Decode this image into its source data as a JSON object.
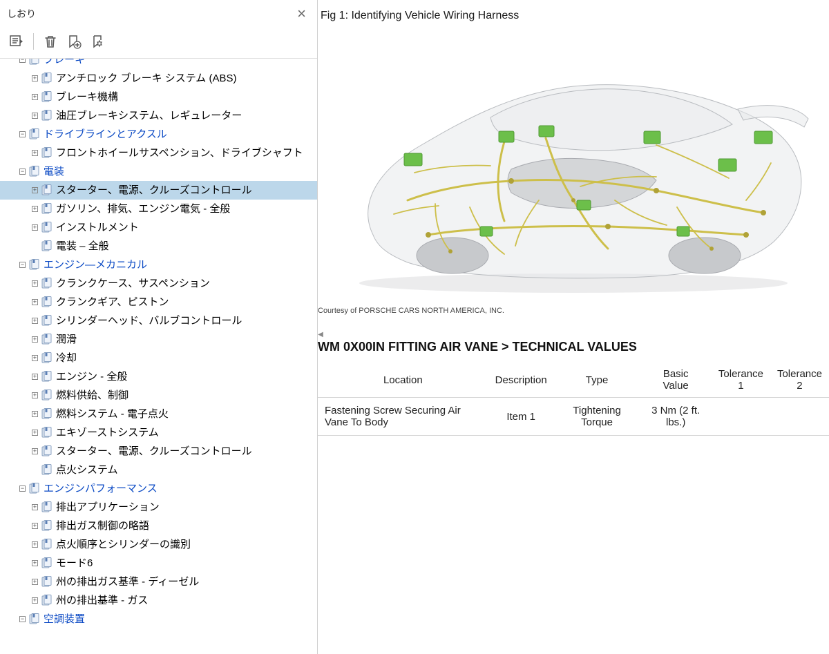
{
  "sidebar": {
    "title": "しおり",
    "tree": [
      {
        "depth": 1,
        "expander": "-",
        "section": true,
        "selected": false,
        "label": "ブレーキ",
        "partial_top": true
      },
      {
        "depth": 2,
        "expander": "+",
        "section": false,
        "selected": false,
        "label": "アンチロック ブレーキ システム (ABS)"
      },
      {
        "depth": 2,
        "expander": "+",
        "section": false,
        "selected": false,
        "label": "ブレーキ機構"
      },
      {
        "depth": 2,
        "expander": "+",
        "section": false,
        "selected": false,
        "label": "油圧ブレーキシステム、レギュレーター"
      },
      {
        "depth": 1,
        "expander": "-",
        "section": true,
        "selected": false,
        "label": "ドライブラインとアクスル"
      },
      {
        "depth": 2,
        "expander": "+",
        "section": false,
        "selected": false,
        "label": "フロントホイールサスペンション、ドライブシャフト"
      },
      {
        "depth": 1,
        "expander": "-",
        "section": true,
        "selected": false,
        "label": "電装"
      },
      {
        "depth": 2,
        "expander": "+",
        "section": false,
        "selected": true,
        "label": "スターター、電源、クルーズコントロール"
      },
      {
        "depth": 2,
        "expander": "+",
        "section": false,
        "selected": false,
        "label": "ガソリン、排気、エンジン電気 - 全般"
      },
      {
        "depth": 2,
        "expander": "+",
        "section": false,
        "selected": false,
        "label": "インストルメント"
      },
      {
        "depth": 2,
        "expander": "",
        "section": false,
        "selected": false,
        "label": "電装 – 全般"
      },
      {
        "depth": 1,
        "expander": "-",
        "section": true,
        "selected": false,
        "label": "エンジン—メカニカル"
      },
      {
        "depth": 2,
        "expander": "+",
        "section": false,
        "selected": false,
        "label": "クランクケース、サスペンション"
      },
      {
        "depth": 2,
        "expander": "+",
        "section": false,
        "selected": false,
        "label": "クランクギア、ピストン"
      },
      {
        "depth": 2,
        "expander": "+",
        "section": false,
        "selected": false,
        "label": "シリンダーヘッド、バルブコントロール"
      },
      {
        "depth": 2,
        "expander": "+",
        "section": false,
        "selected": false,
        "label": "潤滑"
      },
      {
        "depth": 2,
        "expander": "+",
        "section": false,
        "selected": false,
        "label": "冷却"
      },
      {
        "depth": 2,
        "expander": "+",
        "section": false,
        "selected": false,
        "label": "エンジン - 全般"
      },
      {
        "depth": 2,
        "expander": "+",
        "section": false,
        "selected": false,
        "label": "燃料供給、制御"
      },
      {
        "depth": 2,
        "expander": "+",
        "section": false,
        "selected": false,
        "label": "燃料システム - 電子点火"
      },
      {
        "depth": 2,
        "expander": "+",
        "section": false,
        "selected": false,
        "label": "エキゾーストシステム"
      },
      {
        "depth": 2,
        "expander": "+",
        "section": false,
        "selected": false,
        "label": "スターター、電源、クルーズコントロール"
      },
      {
        "depth": 2,
        "expander": "",
        "section": false,
        "selected": false,
        "label": "点火システム"
      },
      {
        "depth": 1,
        "expander": "-",
        "section": true,
        "selected": false,
        "label": "エンジンパフォーマンス"
      },
      {
        "depth": 2,
        "expander": "+",
        "section": false,
        "selected": false,
        "label": "排出アプリケーション"
      },
      {
        "depth": 2,
        "expander": "+",
        "section": false,
        "selected": false,
        "label": "排出ガス制御の略語"
      },
      {
        "depth": 2,
        "expander": "+",
        "section": false,
        "selected": false,
        "label": "点火順序とシリンダーの識別"
      },
      {
        "depth": 2,
        "expander": "+",
        "section": false,
        "selected": false,
        "label": "モード6"
      },
      {
        "depth": 2,
        "expander": "+",
        "section": false,
        "selected": false,
        "label": "州の排出ガス基準 - ディーゼル"
      },
      {
        "depth": 2,
        "expander": "+",
        "section": false,
        "selected": false,
        "label": "州の排出基準 - ガス"
      },
      {
        "depth": 1,
        "expander": "-",
        "section": true,
        "selected": false,
        "label": "空調装置"
      }
    ]
  },
  "content": {
    "figure_title": "Fig 1: Identifying Vehicle Wiring Harness",
    "courtesy": "Courtesy of PORSCHE CARS NORTH AMERICA, INC.",
    "section_title": "WM 0X00IN FITTING AIR VANE > TECHNICAL VALUES",
    "table": {
      "columns": [
        "Location",
        "Description",
        "Type",
        "Basic Value",
        "Tolerance 1",
        "Tolerance 2"
      ],
      "rows": [
        [
          "Fastening Screw Securing Air Vane To Body",
          "Item 1",
          "Tightening Torque",
          "3 Nm (2 ft. lbs.)",
          "",
          ""
        ]
      ]
    }
  },
  "colors": {
    "section_link": "#0a49c4",
    "selected_bg": "#bcd7ea",
    "harness": "#cdbf4a",
    "module": "#6cbf4a",
    "body": "#e8e9eb",
    "border": "#d0d0d0"
  }
}
